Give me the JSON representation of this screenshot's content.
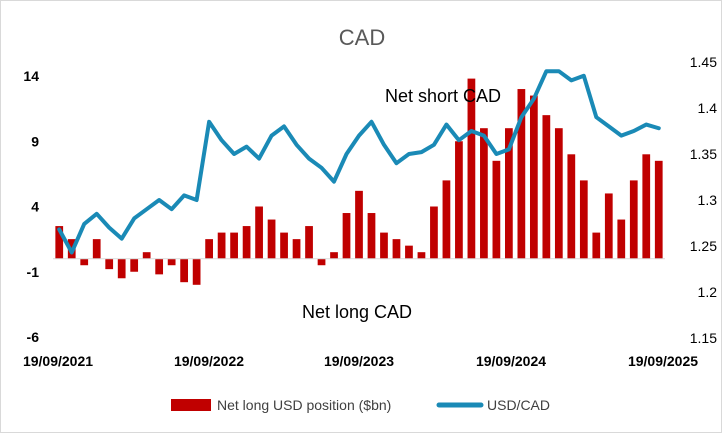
{
  "chart_data": {
    "type": "bar+line",
    "title": "CAD",
    "x_ticks": [
      "19/09/2021",
      "19/09/2022",
      "19/09/2023",
      "19/09/2024",
      "19/09/2025"
    ],
    "y_left": {
      "ticks": [
        "14",
        "9",
        "4",
        "-1",
        "-6"
      ],
      "range": [
        -6,
        14
      ]
    },
    "y_right": {
      "ticks": [
        "1.45",
        "1.4",
        "1.35",
        "1.3",
        "1.25",
        "1.2",
        "1.15"
      ],
      "range": [
        1.15,
        1.45
      ]
    },
    "annotations": [
      "Net short CAD",
      "Net long CAD"
    ],
    "x": [
      "2021-09",
      "2021-10",
      "2021-11",
      "2021-12",
      "2022-01",
      "2022-02",
      "2022-03",
      "2022-04",
      "2022-05",
      "2022-06",
      "2022-07",
      "2022-08",
      "2022-09",
      "2022-10",
      "2022-11",
      "2022-12",
      "2023-01",
      "2023-02",
      "2023-03",
      "2023-04",
      "2023-05",
      "2023-06",
      "2023-07",
      "2023-08",
      "2023-09",
      "2023-10",
      "2023-11",
      "2023-12",
      "2024-01",
      "2024-02",
      "2024-03",
      "2024-04",
      "2024-05",
      "2024-06",
      "2024-07",
      "2024-08",
      "2024-09",
      "2024-10",
      "2024-11",
      "2024-12",
      "2025-01",
      "2025-02",
      "2025-03",
      "2025-04",
      "2025-05",
      "2025-06",
      "2025-07",
      "2025-08",
      "2025-09"
    ],
    "series": [
      {
        "name": "Net long USD position ($bn)",
        "type": "bar",
        "color": "#c00000",
        "values": [
          2.5,
          1.5,
          -0.5,
          1.5,
          -0.8,
          -1.5,
          -1.0,
          0.5,
          -1.2,
          -0.5,
          -1.8,
          -2.0,
          1.5,
          2.0,
          2.0,
          2.5,
          4.0,
          3.0,
          2.0,
          1.5,
          2.5,
          -0.5,
          0.5,
          3.5,
          5.2,
          3.5,
          2.0,
          1.5,
          1.0,
          0.5,
          4.0,
          6.0,
          9.0,
          13.8,
          10.0,
          7.5,
          10.0,
          13.0,
          12.5,
          11.0,
          10.0,
          8.0,
          6.0,
          2.0,
          5.0,
          3.0,
          6.0,
          8.0,
          7.5
        ]
      },
      {
        "name": "USD/CAD",
        "type": "line",
        "color": "#1a8ab6",
        "values": [
          1.268,
          1.243,
          1.274,
          1.285,
          1.27,
          1.258,
          1.28,
          1.29,
          1.3,
          1.29,
          1.305,
          1.3,
          1.385,
          1.365,
          1.35,
          1.358,
          1.345,
          1.37,
          1.38,
          1.36,
          1.345,
          1.335,
          1.32,
          1.35,
          1.37,
          1.385,
          1.36,
          1.34,
          1.35,
          1.352,
          1.36,
          1.382,
          1.365,
          1.375,
          1.37,
          1.35,
          1.355,
          1.39,
          1.41,
          1.44,
          1.44,
          1.43,
          1.435,
          1.39,
          1.38,
          1.37,
          1.375,
          1.382,
          1.378
        ]
      }
    ]
  }
}
